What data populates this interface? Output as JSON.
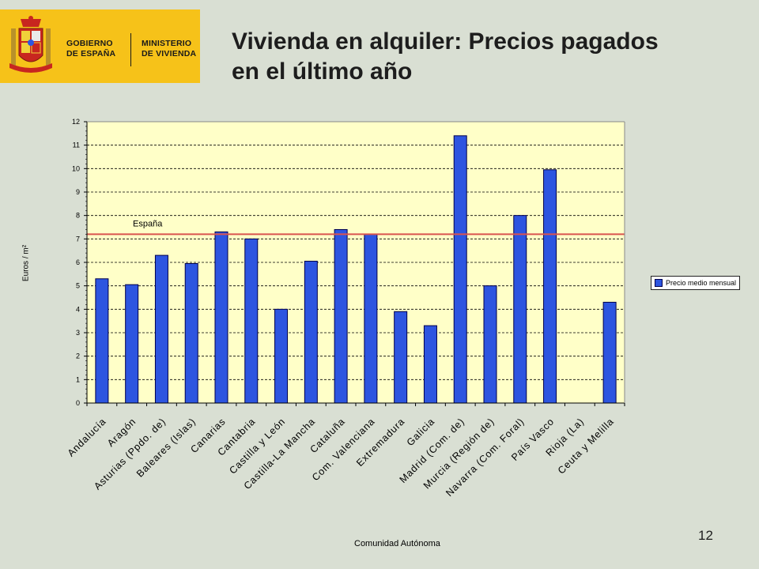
{
  "logo": {
    "org1": "GOBIERNO DE ESPAÑA",
    "org2": "MINISTERIO DE VIVIENDA"
  },
  "title": "Vivienda en alquiler: Precios pagados en el último año",
  "page_number": "12",
  "colors": {
    "bar": "#2d55e0",
    "plot_bg": "#ffffc8",
    "reference_line": "#d9534f",
    "logo_bg": "#f6c219"
  },
  "chart_data": {
    "type": "bar",
    "categories": [
      "Andalucía",
      "Aragón",
      "Asturias (Ppdo. de)",
      "Baleares (Islas)",
      "Canarias",
      "Cantabria",
      "Castilla y León",
      "Castilla-La Mancha",
      "Cataluña",
      "Com. Valenciana",
      "Extremadura",
      "Galicia",
      "Madrid (Com. de)",
      "Murcia (Región de)",
      "Navarra (Com. Foral)",
      "País Vasco",
      "Rioja (La)",
      "Ceuta y Melilla"
    ],
    "series": [
      {
        "name": "Precio medio mensual",
        "values": [
          5.3,
          5.05,
          6.3,
          5.95,
          7.3,
          7.0,
          4.0,
          6.05,
          7.4,
          7.2,
          3.9,
          3.3,
          11.4,
          5.0,
          8.0,
          9.95,
          null,
          4.3
        ]
      }
    ],
    "reference_line": {
      "label": "España",
      "value": 7.2
    },
    "xlabel": "Comunidad Autónoma",
    "ylabel": "Euros / m²",
    "ylim": [
      0,
      12
    ],
    "yticks": [
      0,
      1,
      2,
      3,
      4,
      5,
      6,
      7,
      8,
      9,
      10,
      11,
      12
    ],
    "grid": true,
    "legend_position": "right"
  }
}
